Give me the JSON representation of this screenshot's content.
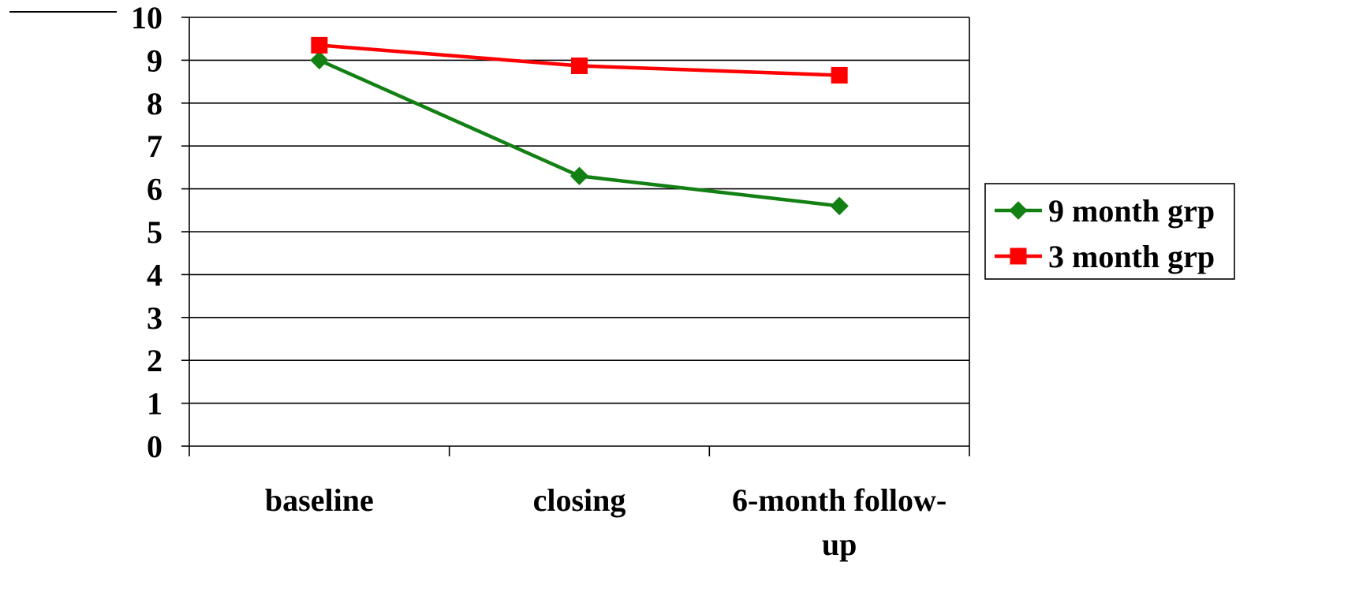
{
  "chart_data": {
    "type": "line",
    "title": "",
    "xlabel": "",
    "ylabel": "",
    "categories": [
      "baseline",
      "closing",
      "6-month follow-up"
    ],
    "category_lines": [
      [
        "baseline"
      ],
      [
        "closing"
      ],
      [
        "6-month follow-",
        "up"
      ]
    ],
    "ylim": [
      0,
      10
    ],
    "yticks": [
      0,
      1,
      2,
      3,
      4,
      5,
      6,
      7,
      8,
      9,
      10
    ],
    "grid": true,
    "legend_position": "right",
    "series": [
      {
        "name": "9 month grp",
        "values": [
          9.0,
          6.3,
          5.6
        ],
        "color": "#128012",
        "marker": "diamond"
      },
      {
        "name": "3 month grp",
        "values": [
          9.35,
          8.87,
          8.65
        ],
        "color": "#ff0000",
        "marker": "square"
      }
    ]
  }
}
